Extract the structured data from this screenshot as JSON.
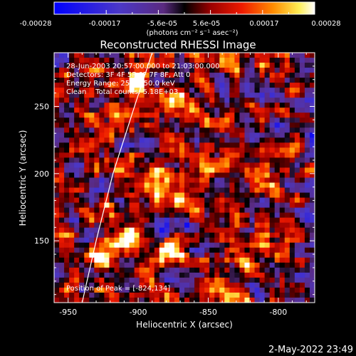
{
  "colorbar": {
    "ticks": [
      "-0.00028",
      "-0.00017",
      "-5.6e-05",
      "5.6e-05",
      "0.00017",
      "0.00028"
    ],
    "unit_line": "(photons cm⁻² s⁻¹ asec⁻²)"
  },
  "timestamp": "2-May-2022 23:49",
  "chart_data": {
    "type": "heatmap",
    "title": "Reconstructed RHESSI Image",
    "xlabel": "Heliocentric X (arcsec)",
    "ylabel": "Heliocentric Y (arcsec)",
    "xlim": [
      -960,
      -774
    ],
    "ylim": [
      104,
      290
    ],
    "xticks": [
      -950,
      -900,
      -850,
      -800
    ],
    "yticks": [
      150,
      200,
      250
    ],
    "clim": [
      -0.00028,
      0.00028
    ],
    "colormap": "RHESSI blue-black-red-yellow-white",
    "info_lines": [
      "28-Jun-2003 20:57:00.000 to 21:03:00.000",
      "Detectors: 3F 4F 5F 6F 7F 8F, Att 0",
      "Energy Range: 25.0 - 50.0 keV",
      "Clean    Total counts: 5.18E+03"
    ],
    "peak_label": "Position of Peak = [-824,134]",
    "peak": [
      -824,
      134
    ],
    "limb_points": [
      [
        -940,
        104
      ],
      [
        -930,
        150
      ],
      [
        -918,
        200
      ],
      [
        -902,
        252
      ],
      [
        -890,
        290
      ]
    ],
    "bright_sources": [
      {
        "x": -824,
        "y": 134,
        "amp": 1.0,
        "r": 7
      },
      {
        "x": -905,
        "y": 150,
        "amp": 0.75,
        "r": 12
      },
      {
        "x": -880,
        "y": 143,
        "amp": 0.6,
        "r": 9
      },
      {
        "x": -925,
        "y": 140,
        "amp": 0.55,
        "r": 9
      },
      {
        "x": -910,
        "y": 205,
        "amp": 0.55,
        "r": 10
      },
      {
        "x": -930,
        "y": 236,
        "amp": 0.5,
        "r": 6
      },
      {
        "x": -900,
        "y": 272,
        "amp": 0.5,
        "r": 9
      },
      {
        "x": -872,
        "y": 258,
        "amp": 0.45,
        "r": 8
      },
      {
        "x": -855,
        "y": 190,
        "amp": 0.35,
        "r": 8
      }
    ],
    "grid": false
  }
}
